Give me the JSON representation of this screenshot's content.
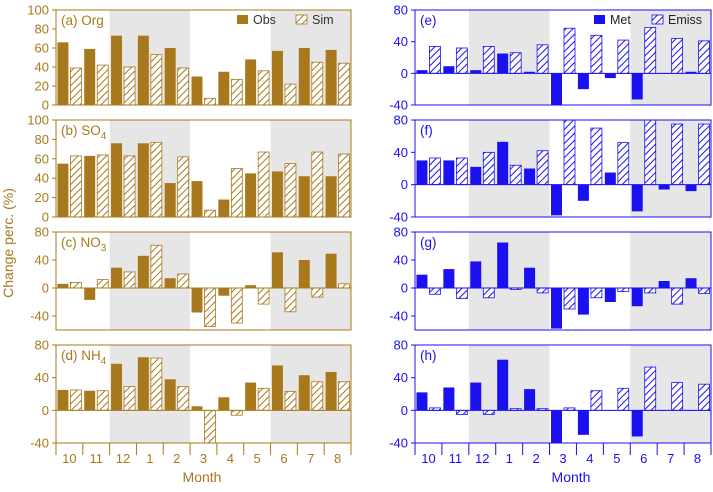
{
  "figure": {
    "colors": {
      "obs": "#a8791c",
      "sim": "#a8791c",
      "met": "#1a10f0",
      "emiss": "#1a10f0",
      "shade": "#e6e6e6",
      "left_axis": "#a8791c",
      "right_axis": "#1a10f0"
    },
    "shared_ylabel": "Change perc. (%)",
    "xlabel_left": "Month",
    "xlabel_right": "Month",
    "months": [
      "10",
      "11",
      "12",
      "1",
      "2",
      "3",
      "4",
      "5",
      "6",
      "7",
      "8"
    ],
    "shaded_month_ranges": [
      [
        "12",
        "2"
      ],
      [
        "6",
        "8"
      ]
    ]
  },
  "chart_data": [
    {
      "type": "bar",
      "panel_label": "(a) Org",
      "categories": [
        "10",
        "11",
        "12",
        "1",
        "2",
        "3",
        "4",
        "5",
        "6",
        "7",
        "8"
      ],
      "series": [
        {
          "name": "Obs",
          "values": [
            66,
            59,
            73,
            73,
            60,
            30,
            35,
            48,
            57,
            60,
            58
          ]
        },
        {
          "name": "Sim",
          "values": [
            39,
            42,
            40,
            53,
            39,
            7,
            27,
            36,
            22,
            45,
            44
          ]
        }
      ],
      "ylim": [
        0,
        100
      ],
      "yticks": [
        0,
        20,
        40,
        60,
        80,
        100
      ],
      "legend": "top-right"
    },
    {
      "type": "bar",
      "panel_label": "(b) SO",
      "panel_label_sub": "4",
      "categories": [
        "10",
        "11",
        "12",
        "1",
        "2",
        "3",
        "4",
        "5",
        "6",
        "7",
        "8"
      ],
      "series": [
        {
          "name": "Obs",
          "values": [
            55,
            63,
            76,
            76,
            35,
            37,
            18,
            45,
            47,
            42,
            42
          ]
        },
        {
          "name": "Sim",
          "values": [
            63,
            64,
            63,
            77,
            62,
            7,
            50,
            67,
            55,
            67,
            65
          ]
        }
      ],
      "ylim": [
        0,
        100
      ],
      "yticks": [
        0,
        20,
        40,
        60,
        80,
        100
      ]
    },
    {
      "type": "bar",
      "panel_label": "(c) NO",
      "panel_label_sub": "3",
      "categories": [
        "10",
        "11",
        "12",
        "1",
        "2",
        "3",
        "4",
        "5",
        "6",
        "7",
        "8"
      ],
      "series": [
        {
          "name": "Obs",
          "values": [
            6,
            -17,
            29,
            46,
            14,
            -35,
            -11,
            4,
            51,
            40,
            49
          ]
        },
        {
          "name": "Sim",
          "values": [
            8,
            12,
            23,
            61,
            20,
            -55,
            -50,
            -23,
            -34,
            -13,
            6
          ]
        }
      ],
      "ylim": [
        -60,
        80
      ],
      "yticks": [
        -40,
        0,
        40,
        80
      ]
    },
    {
      "type": "bar",
      "panel_label": "(d) NH",
      "panel_label_sub": "4",
      "categories": [
        "10",
        "11",
        "12",
        "1",
        "2",
        "3",
        "4",
        "5",
        "6",
        "7",
        "8"
      ],
      "series": [
        {
          "name": "Obs",
          "values": [
            25,
            24,
            57,
            65,
            38,
            5,
            16,
            34,
            55,
            43,
            47
          ]
        },
        {
          "name": "Sim",
          "values": [
            25,
            24,
            29,
            64,
            29,
            -42,
            -6,
            27,
            23,
            35,
            35
          ]
        }
      ],
      "ylim": [
        -40,
        80
      ],
      "yticks": [
        -40,
        0,
        40,
        80
      ]
    },
    {
      "type": "bar",
      "panel_label": "(e)",
      "categories": [
        "10",
        "11",
        "12",
        "1",
        "2",
        "3",
        "4",
        "5",
        "6",
        "7",
        "8"
      ],
      "series": [
        {
          "name": "Met",
          "values": [
            4,
            9,
            4,
            25,
            2,
            -45,
            -20,
            -6,
            -33,
            0,
            2
          ]
        },
        {
          "name": "Emiss",
          "values": [
            34,
            32,
            34,
            26,
            36,
            57,
            48,
            42,
            58,
            44,
            41
          ]
        }
      ],
      "ylim": [
        -40,
        80
      ],
      "yticks": [
        -40,
        0,
        40,
        80
      ],
      "legend": "top-right"
    },
    {
      "type": "bar",
      "panel_label": "(f)",
      "categories": [
        "10",
        "11",
        "12",
        "1",
        "2",
        "3",
        "4",
        "5",
        "6",
        "7",
        "8"
      ],
      "series": [
        {
          "name": "Met",
          "values": [
            30,
            30,
            22,
            53,
            20,
            -38,
            -20,
            15,
            -33,
            -6,
            -8
          ]
        },
        {
          "name": "Emiss",
          "values": [
            33,
            33,
            40,
            24,
            42,
            88,
            70,
            52,
            90,
            75,
            75
          ]
        }
      ],
      "ylim": [
        -40,
        80
      ],
      "yticks": [
        -40,
        0,
        40,
        80
      ]
    },
    {
      "type": "bar",
      "panel_label": "(g)",
      "categories": [
        "10",
        "11",
        "12",
        "1",
        "2",
        "3",
        "4",
        "5",
        "6",
        "7",
        "8"
      ],
      "series": [
        {
          "name": "Met",
          "values": [
            19,
            27,
            38,
            65,
            29,
            -58,
            -38,
            -20,
            -26,
            10,
            14
          ]
        },
        {
          "name": "Emiss",
          "values": [
            -9,
            -15,
            -14,
            -2,
            -7,
            -30,
            -14,
            -5,
            -7,
            -23,
            -8
          ]
        }
      ],
      "ylim": [
        -60,
        80
      ],
      "yticks": [
        -40,
        0,
        40,
        80
      ]
    },
    {
      "type": "bar",
      "panel_label": "(h)",
      "categories": [
        "10",
        "11",
        "12",
        "1",
        "2",
        "3",
        "4",
        "5",
        "6",
        "7",
        "8"
      ],
      "series": [
        {
          "name": "Met",
          "values": [
            22,
            28,
            34,
            62,
            26,
            -40,
            -30,
            0,
            -32,
            0,
            0
          ]
        },
        {
          "name": "Emiss",
          "values": [
            3,
            -5,
            -5,
            2,
            2,
            3,
            24,
            27,
            53,
            34,
            32
          ]
        }
      ],
      "ylim": [
        -40,
        80
      ],
      "yticks": [
        -40,
        0,
        40,
        80
      ]
    }
  ]
}
